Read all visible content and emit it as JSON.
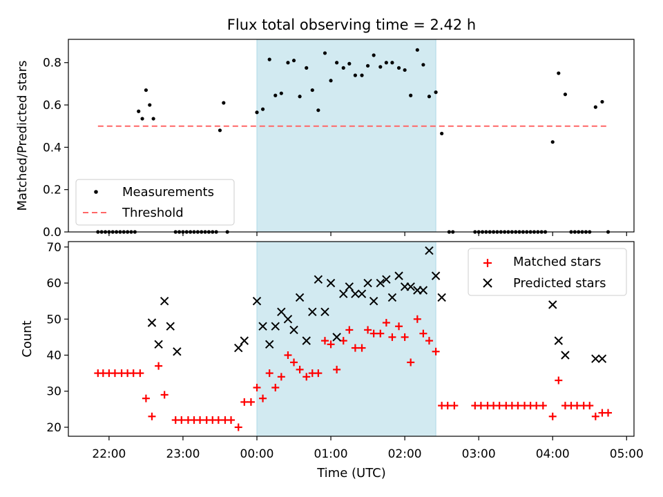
{
  "chart_data": {
    "type": "scatter",
    "title": "Flux total observing time = 2.42 h",
    "xlabel": "Time (UTC)",
    "x_unit": "hours relative to 00:00 UTC",
    "xlim": [
      -2.55,
      5.1
    ],
    "x_ticks": [
      {
        "value": -2,
        "label": "22:00"
      },
      {
        "value": -1,
        "label": "23:00"
      },
      {
        "value": 0,
        "label": "00:00"
      },
      {
        "value": 1,
        "label": "01:00"
      },
      {
        "value": 2,
        "label": "02:00"
      },
      {
        "value": 3,
        "label": "03:00"
      },
      {
        "value": 4,
        "label": "04:00"
      },
      {
        "value": 5,
        "label": "05:00"
      }
    ],
    "highlight_span": {
      "x_start": 0.0,
      "x_end": 2.42,
      "color": "#add8e6"
    },
    "panels": [
      {
        "ylabel": "Matched/Predicted stars",
        "ylim": [
          0,
          0.91
        ],
        "y_ticks": [
          "0.0",
          "0.2",
          "0.4",
          "0.6",
          "0.8"
        ],
        "y_tick_values": [
          0.0,
          0.2,
          0.4,
          0.6,
          0.8
        ],
        "legend_position": "lower-left",
        "threshold": {
          "name": "Threshold",
          "y": 0.5,
          "x_range": [
            -2.15,
            4.75
          ],
          "color": "#ff6666",
          "style": "dashed"
        },
        "series": [
          {
            "name": "Measurements",
            "marker": "dot",
            "color": "#000000",
            "points": [
              [
                -2.15,
                0.0
              ],
              [
                -2.1,
                0.0
              ],
              [
                -2.05,
                0.0
              ],
              [
                -2.0,
                0.0
              ],
              [
                -1.95,
                0.0
              ],
              [
                -1.9,
                0.0
              ],
              [
                -1.85,
                0.0
              ],
              [
                -1.8,
                0.0
              ],
              [
                -1.75,
                0.0
              ],
              [
                -1.7,
                0.0
              ],
              [
                -1.65,
                0.0
              ],
              [
                -1.6,
                0.57
              ],
              [
                -1.55,
                0.535
              ],
              [
                -1.5,
                0.67
              ],
              [
                -1.45,
                0.6
              ],
              [
                -1.4,
                0.535
              ],
              [
                -1.1,
                0.0
              ],
              [
                -1.05,
                0.0
              ],
              [
                -1.0,
                0.0
              ],
              [
                -0.95,
                0.0
              ],
              [
                -0.9,
                0.0
              ],
              [
                -0.85,
                0.0
              ],
              [
                -0.8,
                0.0
              ],
              [
                -0.75,
                0.0
              ],
              [
                -0.7,
                0.0
              ],
              [
                -0.65,
                0.0
              ],
              [
                -0.6,
                0.0
              ],
              [
                -0.55,
                0.0
              ],
              [
                -0.5,
                0.48
              ],
              [
                -0.45,
                0.61
              ],
              [
                -0.4,
                0.0
              ],
              [
                0.0,
                0.565
              ],
              [
                0.08,
                0.58
              ],
              [
                0.17,
                0.815
              ],
              [
                0.25,
                0.645
              ],
              [
                0.33,
                0.655
              ],
              [
                0.42,
                0.8
              ],
              [
                0.5,
                0.81
              ],
              [
                0.58,
                0.64
              ],
              [
                0.67,
                0.775
              ],
              [
                0.75,
                0.67
              ],
              [
                0.83,
                0.575
              ],
              [
                0.92,
                0.845
              ],
              [
                1.0,
                0.715
              ],
              [
                1.08,
                0.8
              ],
              [
                1.17,
                0.775
              ],
              [
                1.25,
                0.795
              ],
              [
                1.33,
                0.74
              ],
              [
                1.42,
                0.74
              ],
              [
                1.5,
                0.785
              ],
              [
                1.58,
                0.835
              ],
              [
                1.67,
                0.78
              ],
              [
                1.75,
                0.8
              ],
              [
                1.83,
                0.8
              ],
              [
                1.92,
                0.775
              ],
              [
                2.0,
                0.765
              ],
              [
                2.08,
                0.645
              ],
              [
                2.17,
                0.86
              ],
              [
                2.25,
                0.79
              ],
              [
                2.33,
                0.64
              ],
              [
                2.42,
                0.66
              ],
              [
                2.5,
                0.465
              ],
              [
                2.6,
                0.0
              ],
              [
                2.65,
                0.0
              ],
              [
                2.95,
                0.0
              ],
              [
                3.0,
                0.0
              ],
              [
                3.05,
                0.0
              ],
              [
                3.1,
                0.0
              ],
              [
                3.15,
                0.0
              ],
              [
                3.2,
                0.0
              ],
              [
                3.25,
                0.0
              ],
              [
                3.3,
                0.0
              ],
              [
                3.35,
                0.0
              ],
              [
                3.4,
                0.0
              ],
              [
                3.45,
                0.0
              ],
              [
                3.5,
                0.0
              ],
              [
                3.55,
                0.0
              ],
              [
                3.6,
                0.0
              ],
              [
                3.65,
                0.0
              ],
              [
                3.7,
                0.0
              ],
              [
                3.75,
                0.0
              ],
              [
                3.8,
                0.0
              ],
              [
                3.85,
                0.0
              ],
              [
                3.9,
                0.0
              ],
              [
                4.0,
                0.425
              ],
              [
                4.08,
                0.75
              ],
              [
                4.17,
                0.65
              ],
              [
                4.25,
                0.0
              ],
              [
                4.3,
                0.0
              ],
              [
                4.35,
                0.0
              ],
              [
                4.4,
                0.0
              ],
              [
                4.45,
                0.0
              ],
              [
                4.5,
                0.0
              ],
              [
                4.58,
                0.59
              ],
              [
                4.67,
                0.615
              ],
              [
                4.75,
                0.0
              ]
            ]
          }
        ]
      },
      {
        "ylabel": "Count",
        "ylim": [
          17.5,
          71.5
        ],
        "y_ticks": [
          "20",
          "30",
          "40",
          "50",
          "60",
          "70"
        ],
        "y_tick_values": [
          20,
          30,
          40,
          50,
          60,
          70
        ],
        "legend_position": "upper-right",
        "series": [
          {
            "name": "Matched stars",
            "marker": "plus",
            "color": "#ff0000",
            "points": [
              [
                -2.15,
                35
              ],
              [
                -2.08,
                35
              ],
              [
                -2.0,
                35
              ],
              [
                -1.92,
                35
              ],
              [
                -1.83,
                35
              ],
              [
                -1.75,
                35
              ],
              [
                -1.67,
                35
              ],
              [
                -1.58,
                35
              ],
              [
                -1.5,
                28
              ],
              [
                -1.42,
                23
              ],
              [
                -1.33,
                37
              ],
              [
                -1.25,
                29
              ],
              [
                -1.1,
                22
              ],
              [
                -1.02,
                22
              ],
              [
                -0.93,
                22
              ],
              [
                -0.85,
                22
              ],
              [
                -0.77,
                22
              ],
              [
                -0.68,
                22
              ],
              [
                -0.6,
                22
              ],
              [
                -0.52,
                22
              ],
              [
                -0.43,
                22
              ],
              [
                -0.35,
                22
              ],
              [
                -0.25,
                20
              ],
              [
                -0.17,
                27
              ],
              [
                -0.08,
                27
              ],
              [
                0.0,
                31
              ],
              [
                0.08,
                28
              ],
              [
                0.17,
                35
              ],
              [
                0.25,
                31
              ],
              [
                0.33,
                34
              ],
              [
                0.42,
                40
              ],
              [
                0.5,
                38
              ],
              [
                0.58,
                36
              ],
              [
                0.67,
                34
              ],
              [
                0.75,
                35
              ],
              [
                0.83,
                35
              ],
              [
                0.92,
                44
              ],
              [
                1.0,
                43
              ],
              [
                1.08,
                36
              ],
              [
                1.17,
                44
              ],
              [
                1.25,
                47
              ],
              [
                1.33,
                42
              ],
              [
                1.42,
                42
              ],
              [
                1.5,
                47
              ],
              [
                1.58,
                46
              ],
              [
                1.67,
                46
              ],
              [
                1.75,
                49
              ],
              [
                1.83,
                45
              ],
              [
                1.92,
                48
              ],
              [
                2.0,
                45
              ],
              [
                2.08,
                38
              ],
              [
                2.17,
                50
              ],
              [
                2.25,
                46
              ],
              [
                2.33,
                44
              ],
              [
                2.42,
                41
              ],
              [
                2.5,
                26
              ],
              [
                2.58,
                26
              ],
              [
                2.67,
                26
              ],
              [
                2.95,
                26
              ],
              [
                3.03,
                26
              ],
              [
                3.12,
                26
              ],
              [
                3.2,
                26
              ],
              [
                3.28,
                26
              ],
              [
                3.37,
                26
              ],
              [
                3.45,
                26
              ],
              [
                3.53,
                26
              ],
              [
                3.62,
                26
              ],
              [
                3.7,
                26
              ],
              [
                3.78,
                26
              ],
              [
                3.87,
                26
              ],
              [
                4.0,
                23
              ],
              [
                4.08,
                33
              ],
              [
                4.17,
                26
              ],
              [
                4.25,
                26
              ],
              [
                4.33,
                26
              ],
              [
                4.42,
                26
              ],
              [
                4.5,
                26
              ],
              [
                4.58,
                23
              ],
              [
                4.67,
                24
              ],
              [
                4.75,
                24
              ]
            ]
          },
          {
            "name": "Predicted stars",
            "marker": "x",
            "color": "#000000",
            "points": [
              [
                -1.42,
                49
              ],
              [
                -1.33,
                43
              ],
              [
                -1.25,
                55
              ],
              [
                -1.17,
                48
              ],
              [
                -1.08,
                41
              ],
              [
                -0.25,
                42
              ],
              [
                -0.17,
                44
              ],
              [
                0.0,
                55
              ],
              [
                0.08,
                48
              ],
              [
                0.17,
                43
              ],
              [
                0.25,
                48
              ],
              [
                0.33,
                52
              ],
              [
                0.42,
                50
              ],
              [
                0.5,
                47
              ],
              [
                0.58,
                56
              ],
              [
                0.67,
                44
              ],
              [
                0.75,
                52
              ],
              [
                0.83,
                61
              ],
              [
                0.92,
                52
              ],
              [
                1.0,
                60
              ],
              [
                1.08,
                45
              ],
              [
                1.17,
                57
              ],
              [
                1.25,
                59
              ],
              [
                1.33,
                57
              ],
              [
                1.42,
                57
              ],
              [
                1.5,
                60
              ],
              [
                1.58,
                55
              ],
              [
                1.67,
                60
              ],
              [
                1.75,
                61
              ],
              [
                1.83,
                56
              ],
              [
                1.92,
                62
              ],
              [
                2.0,
                59
              ],
              [
                2.08,
                59
              ],
              [
                2.17,
                58
              ],
              [
                2.25,
                58
              ],
              [
                2.33,
                69
              ],
              [
                2.42,
                62
              ],
              [
                2.5,
                56
              ],
              [
                4.0,
                54
              ],
              [
                4.08,
                44
              ],
              [
                4.17,
                40
              ],
              [
                4.58,
                39
              ],
              [
                4.67,
                39
              ]
            ]
          }
        ]
      }
    ]
  }
}
